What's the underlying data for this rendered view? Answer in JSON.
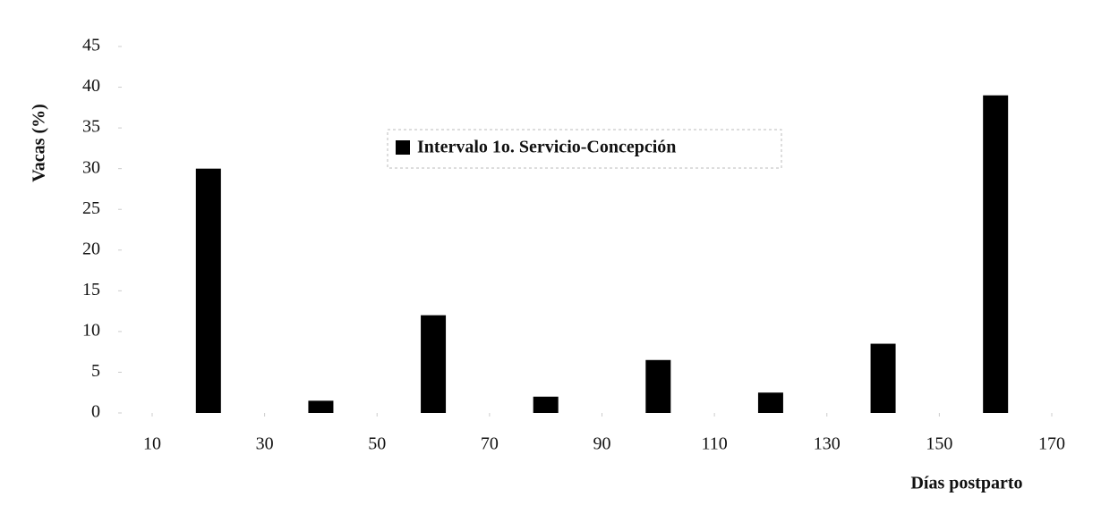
{
  "chart_data": {
    "type": "bar",
    "legend_title": "Intervalo 1o. Servicio-Concepción",
    "xlabel": "Días postparto",
    "ylabel": "Vacas (%)",
    "x": [
      20,
      40,
      60,
      80,
      100,
      120,
      140,
      160
    ],
    "values": [
      30,
      1.5,
      12,
      2,
      6.5,
      2.5,
      8.5,
      39
    ],
    "color": "#000000",
    "xlim": [
      10,
      170
    ],
    "xticks": [
      10,
      30,
      50,
      70,
      90,
      110,
      130,
      150,
      170
    ],
    "ylim": [
      0,
      45
    ],
    "yticks": [
      0,
      5,
      10,
      15,
      20,
      25,
      30,
      35,
      40,
      45
    ]
  }
}
